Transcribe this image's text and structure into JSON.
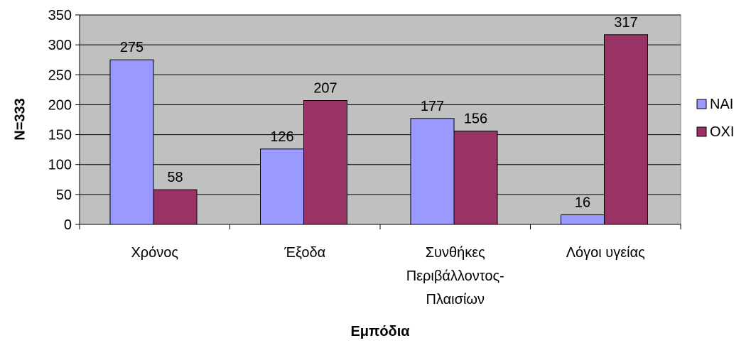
{
  "chart_data": {
    "type": "bar",
    "categories": [
      [
        "Χρόνος"
      ],
      [
        "Έξοδα"
      ],
      [
        "Συνθήκες",
        "Περιβάλλοντος-",
        "Πλαισίων"
      ],
      [
        "Λόγοι υγείας"
      ]
    ],
    "series": [
      {
        "name": "ΝΑΙ",
        "values": [
          275,
          126,
          177,
          16
        ],
        "color": "#9999ff"
      },
      {
        "name": "ΟΧΙ",
        "values": [
          58,
          207,
          156,
          317
        ],
        "color": "#993366"
      }
    ],
    "xlabel": "Εμπόδια",
    "ylabel": "N=333",
    "ylim": [
      0,
      350
    ],
    "yticks": [
      0,
      50,
      100,
      150,
      200,
      250,
      300,
      350
    ],
    "grid": true,
    "plot_background": "#c0c0c0",
    "legend_position": "right"
  }
}
